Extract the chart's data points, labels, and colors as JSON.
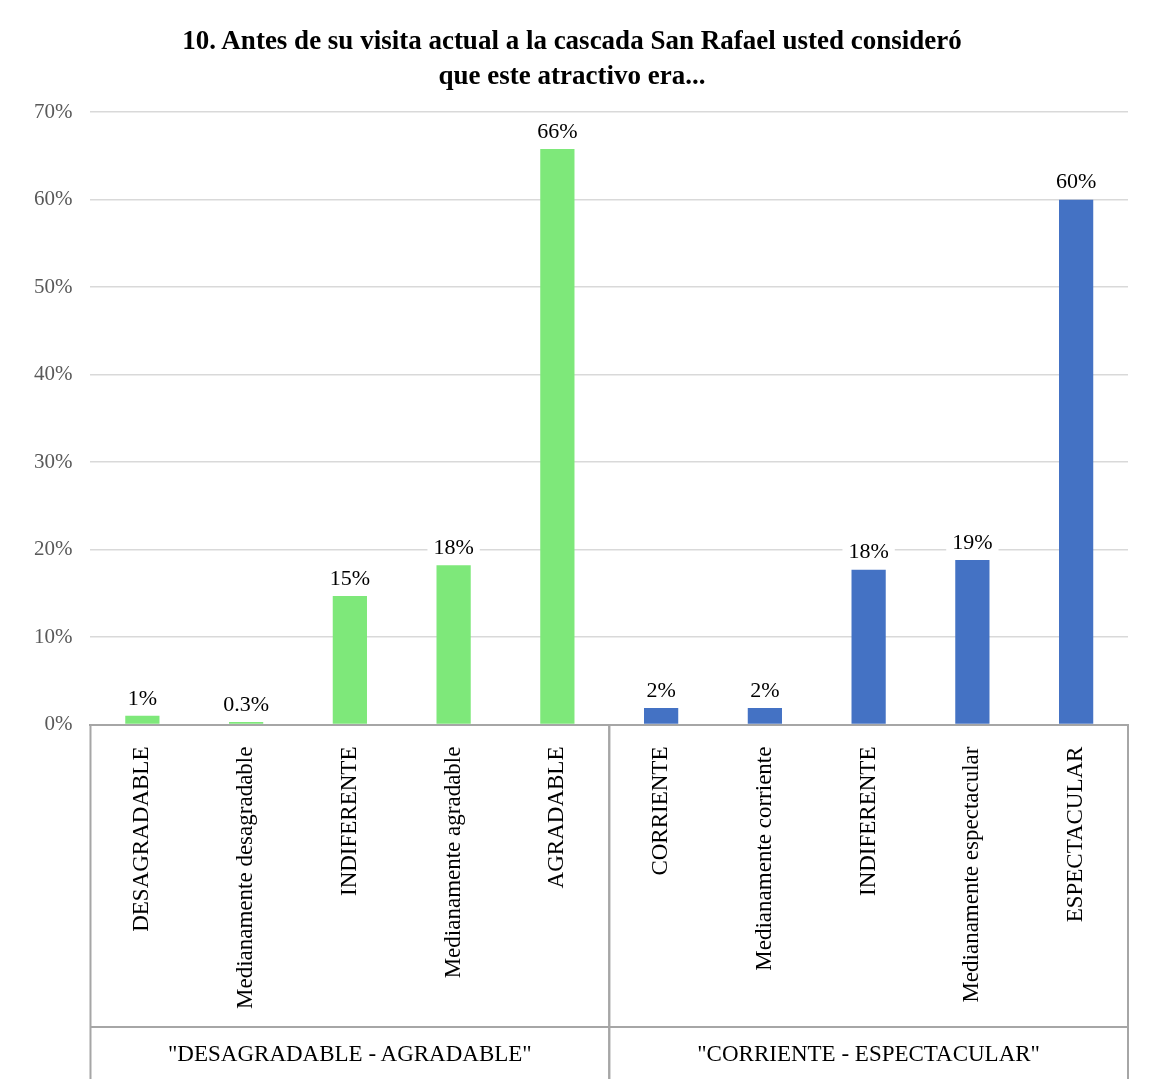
{
  "chart_data": {
    "type": "bar",
    "title": "10. Antes de su visita actual a la cascada San Rafael usted consideró que este atractivo era...",
    "categories": [
      "DESAGRADABLE",
      "Medianamente desagradable",
      "INDIFERENTE",
      "Medianamente agradable",
      "AGRADABLE",
      "CORRIENTE",
      "Medianamente corriente",
      "INDIFERENTE",
      "Medianamente espectacular",
      "ESPECTACULAR"
    ],
    "values": [
      1,
      0.3,
      14.7,
      18.2,
      65.8,
      1.9,
      1.9,
      17.7,
      18.8,
      60
    ],
    "value_labels": [
      "1%",
      "0.3%",
      "15%",
      "18%",
      "66%",
      "2%",
      "2%",
      "18%",
      "19%",
      "60%"
    ],
    "colors": [
      "#7ee87a",
      "#7ee87a",
      "#7ee87a",
      "#7ee87a",
      "#7ee87a",
      "#4472c4",
      "#4472c4",
      "#4472c4",
      "#4472c4",
      "#4472c4"
    ],
    "annotations": [
      "\"DESAGRADABLE - AGRADABLE\"",
      "\"CORRIENTE - ESPECTACULAR\""
    ],
    "ylim": [
      0,
      70
    ],
    "yticks": [
      {
        "value": 0,
        "label": "0%"
      },
      {
        "value": 10,
        "label": "10%"
      },
      {
        "value": 20,
        "label": "20%"
      },
      {
        "value": 30,
        "label": "30%"
      },
      {
        "value": 40,
        "label": "40%"
      },
      {
        "value": 50,
        "label": "50%"
      },
      {
        "value": 60,
        "label": "60%"
      },
      {
        "value": 70,
        "label": "70%"
      }
    ],
    "grid": "y",
    "legend": false
  }
}
